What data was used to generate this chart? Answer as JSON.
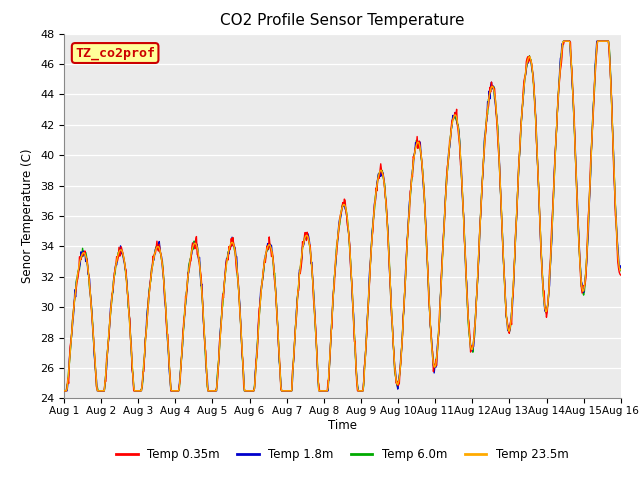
{
  "title": "CO2 Profile Sensor Temperature",
  "ylabel": "Senor Temperature (C)",
  "xlabel": "Time",
  "ylim": [
    24,
    48
  ],
  "yticks": [
    24,
    26,
    28,
    30,
    32,
    34,
    36,
    38,
    40,
    42,
    44,
    46,
    48
  ],
  "xtick_labels": [
    "Aug 1",
    "Aug 2",
    "Aug 3",
    "Aug 4",
    "Aug 5",
    "Aug 6",
    "Aug 7",
    "Aug 8",
    "Aug 9",
    "Aug 10",
    "Aug 11",
    "Aug 12",
    "Aug 13",
    "Aug 14",
    "Aug 15",
    "Aug 16"
  ],
  "annotation_text": "TZ_co2prof",
  "annotation_bg": "#FFFF99",
  "annotation_border": "#CC0000",
  "bg_color": "#E8E8E8",
  "plot_bg_color": "#EBEBEB",
  "colors_order": [
    "6.0m",
    "1.8m",
    "0.35m",
    "23.5m"
  ],
  "colors": {
    "0.35m": "#FF0000",
    "1.8m": "#0000CC",
    "6.0m": "#00AA00",
    "23.5m": "#FFAA00"
  },
  "legend_labels": [
    "Temp 0.35m",
    "Temp 1.8m",
    "Temp 6.0m",
    "Temp 23.5m"
  ],
  "line_width": 1.0,
  "figsize": [
    6.4,
    4.8
  ],
  "dpi": 100
}
